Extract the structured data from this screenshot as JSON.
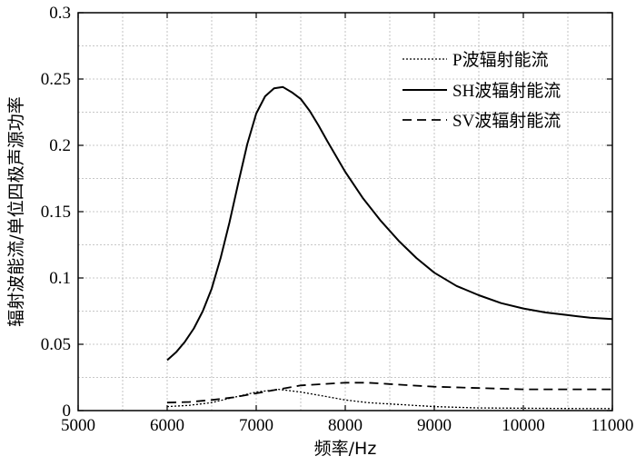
{
  "chart_data": {
    "type": "line",
    "xlabel": "频率/Hz",
    "ylabel": "辐射波能流/单位四极声源功率",
    "xlim": [
      5000,
      11000
    ],
    "ylim": [
      0,
      0.3
    ],
    "xticks": [
      5000,
      6000,
      7000,
      8000,
      9000,
      10000,
      11000
    ],
    "yticks": [
      0,
      0.05,
      0.1,
      0.15,
      0.2,
      0.25,
      0.3
    ],
    "xtick_labels": [
      "5000",
      "6000",
      "7000",
      "8000",
      "9000",
      "10000",
      "11000"
    ],
    "ytick_labels": [
      "0",
      "0.05",
      "0.1",
      "0.15",
      "0.2",
      "0.25",
      "0.3"
    ],
    "grid": true,
    "legend_position": "top-right",
    "series": [
      {
        "name": "P波辐射能流",
        "style": "dotted",
        "x": [
          6000,
          6250,
          6500,
          6750,
          7000,
          7250,
          7500,
          7750,
          8000,
          8250,
          8500,
          9000,
          9500,
          10000,
          10500,
          11000
        ],
        "values": [
          0.003,
          0.004,
          0.006,
          0.01,
          0.014,
          0.016,
          0.014,
          0.011,
          0.008,
          0.006,
          0.005,
          0.003,
          0.002,
          0.0018,
          0.0016,
          0.0015
        ]
      },
      {
        "name": "SH波辐射能流",
        "style": "solid",
        "x": [
          6000,
          6100,
          6200,
          6300,
          6400,
          6500,
          6600,
          6700,
          6800,
          6900,
          7000,
          7100,
          7200,
          7300,
          7400,
          7500,
          7600,
          7700,
          7800,
          8000,
          8200,
          8400,
          8600,
          8800,
          9000,
          9250,
          9500,
          9750,
          10000,
          10250,
          10500,
          10750,
          11000
        ],
        "values": [
          0.038,
          0.044,
          0.052,
          0.062,
          0.075,
          0.092,
          0.115,
          0.142,
          0.172,
          0.201,
          0.224,
          0.237,
          0.243,
          0.244,
          0.24,
          0.235,
          0.226,
          0.215,
          0.203,
          0.18,
          0.16,
          0.143,
          0.128,
          0.115,
          0.104,
          0.094,
          0.087,
          0.081,
          0.077,
          0.074,
          0.072,
          0.07,
          0.069
        ]
      },
      {
        "name": "SV波辐射能流",
        "style": "dashed",
        "x": [
          6000,
          6250,
          6500,
          6750,
          7000,
          7250,
          7500,
          7750,
          8000,
          8250,
          8500,
          8750,
          9000,
          9500,
          10000,
          10500,
          11000
        ],
        "values": [
          0.006,
          0.0065,
          0.008,
          0.01,
          0.013,
          0.016,
          0.019,
          0.02,
          0.021,
          0.021,
          0.02,
          0.019,
          0.018,
          0.017,
          0.016,
          0.016,
          0.016
        ]
      }
    ]
  }
}
